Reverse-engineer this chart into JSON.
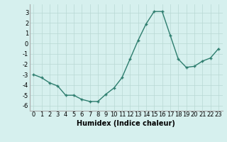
{
  "x": [
    0,
    1,
    2,
    3,
    4,
    5,
    6,
    7,
    8,
    9,
    10,
    11,
    12,
    13,
    14,
    15,
    16,
    17,
    18,
    19,
    20,
    21,
    22,
    23
  ],
  "y": [
    -3.0,
    -3.3,
    -3.8,
    -4.1,
    -5.0,
    -5.0,
    -5.4,
    -5.6,
    -5.6,
    -4.9,
    -4.3,
    -3.3,
    -1.5,
    0.3,
    1.9,
    3.1,
    3.1,
    0.8,
    -1.5,
    -2.3,
    -2.2,
    -1.7,
    -1.4,
    -0.5
  ],
  "xlabel": "Humidex (Indice chaleur)",
  "xlim": [
    -0.5,
    23.5
  ],
  "ylim": [
    -6.5,
    3.8
  ],
  "yticks": [
    -6,
    -5,
    -4,
    -3,
    -2,
    -1,
    0,
    1,
    2,
    3
  ],
  "xticks": [
    0,
    1,
    2,
    3,
    4,
    5,
    6,
    7,
    8,
    9,
    10,
    11,
    12,
    13,
    14,
    15,
    16,
    17,
    18,
    19,
    20,
    21,
    22,
    23
  ],
  "line_color": "#2d7d6e",
  "marker": "+",
  "bg_color": "#d6f0ee",
  "grid_color": "#b8d8d4",
  "label_fontsize": 7,
  "tick_fontsize": 6
}
